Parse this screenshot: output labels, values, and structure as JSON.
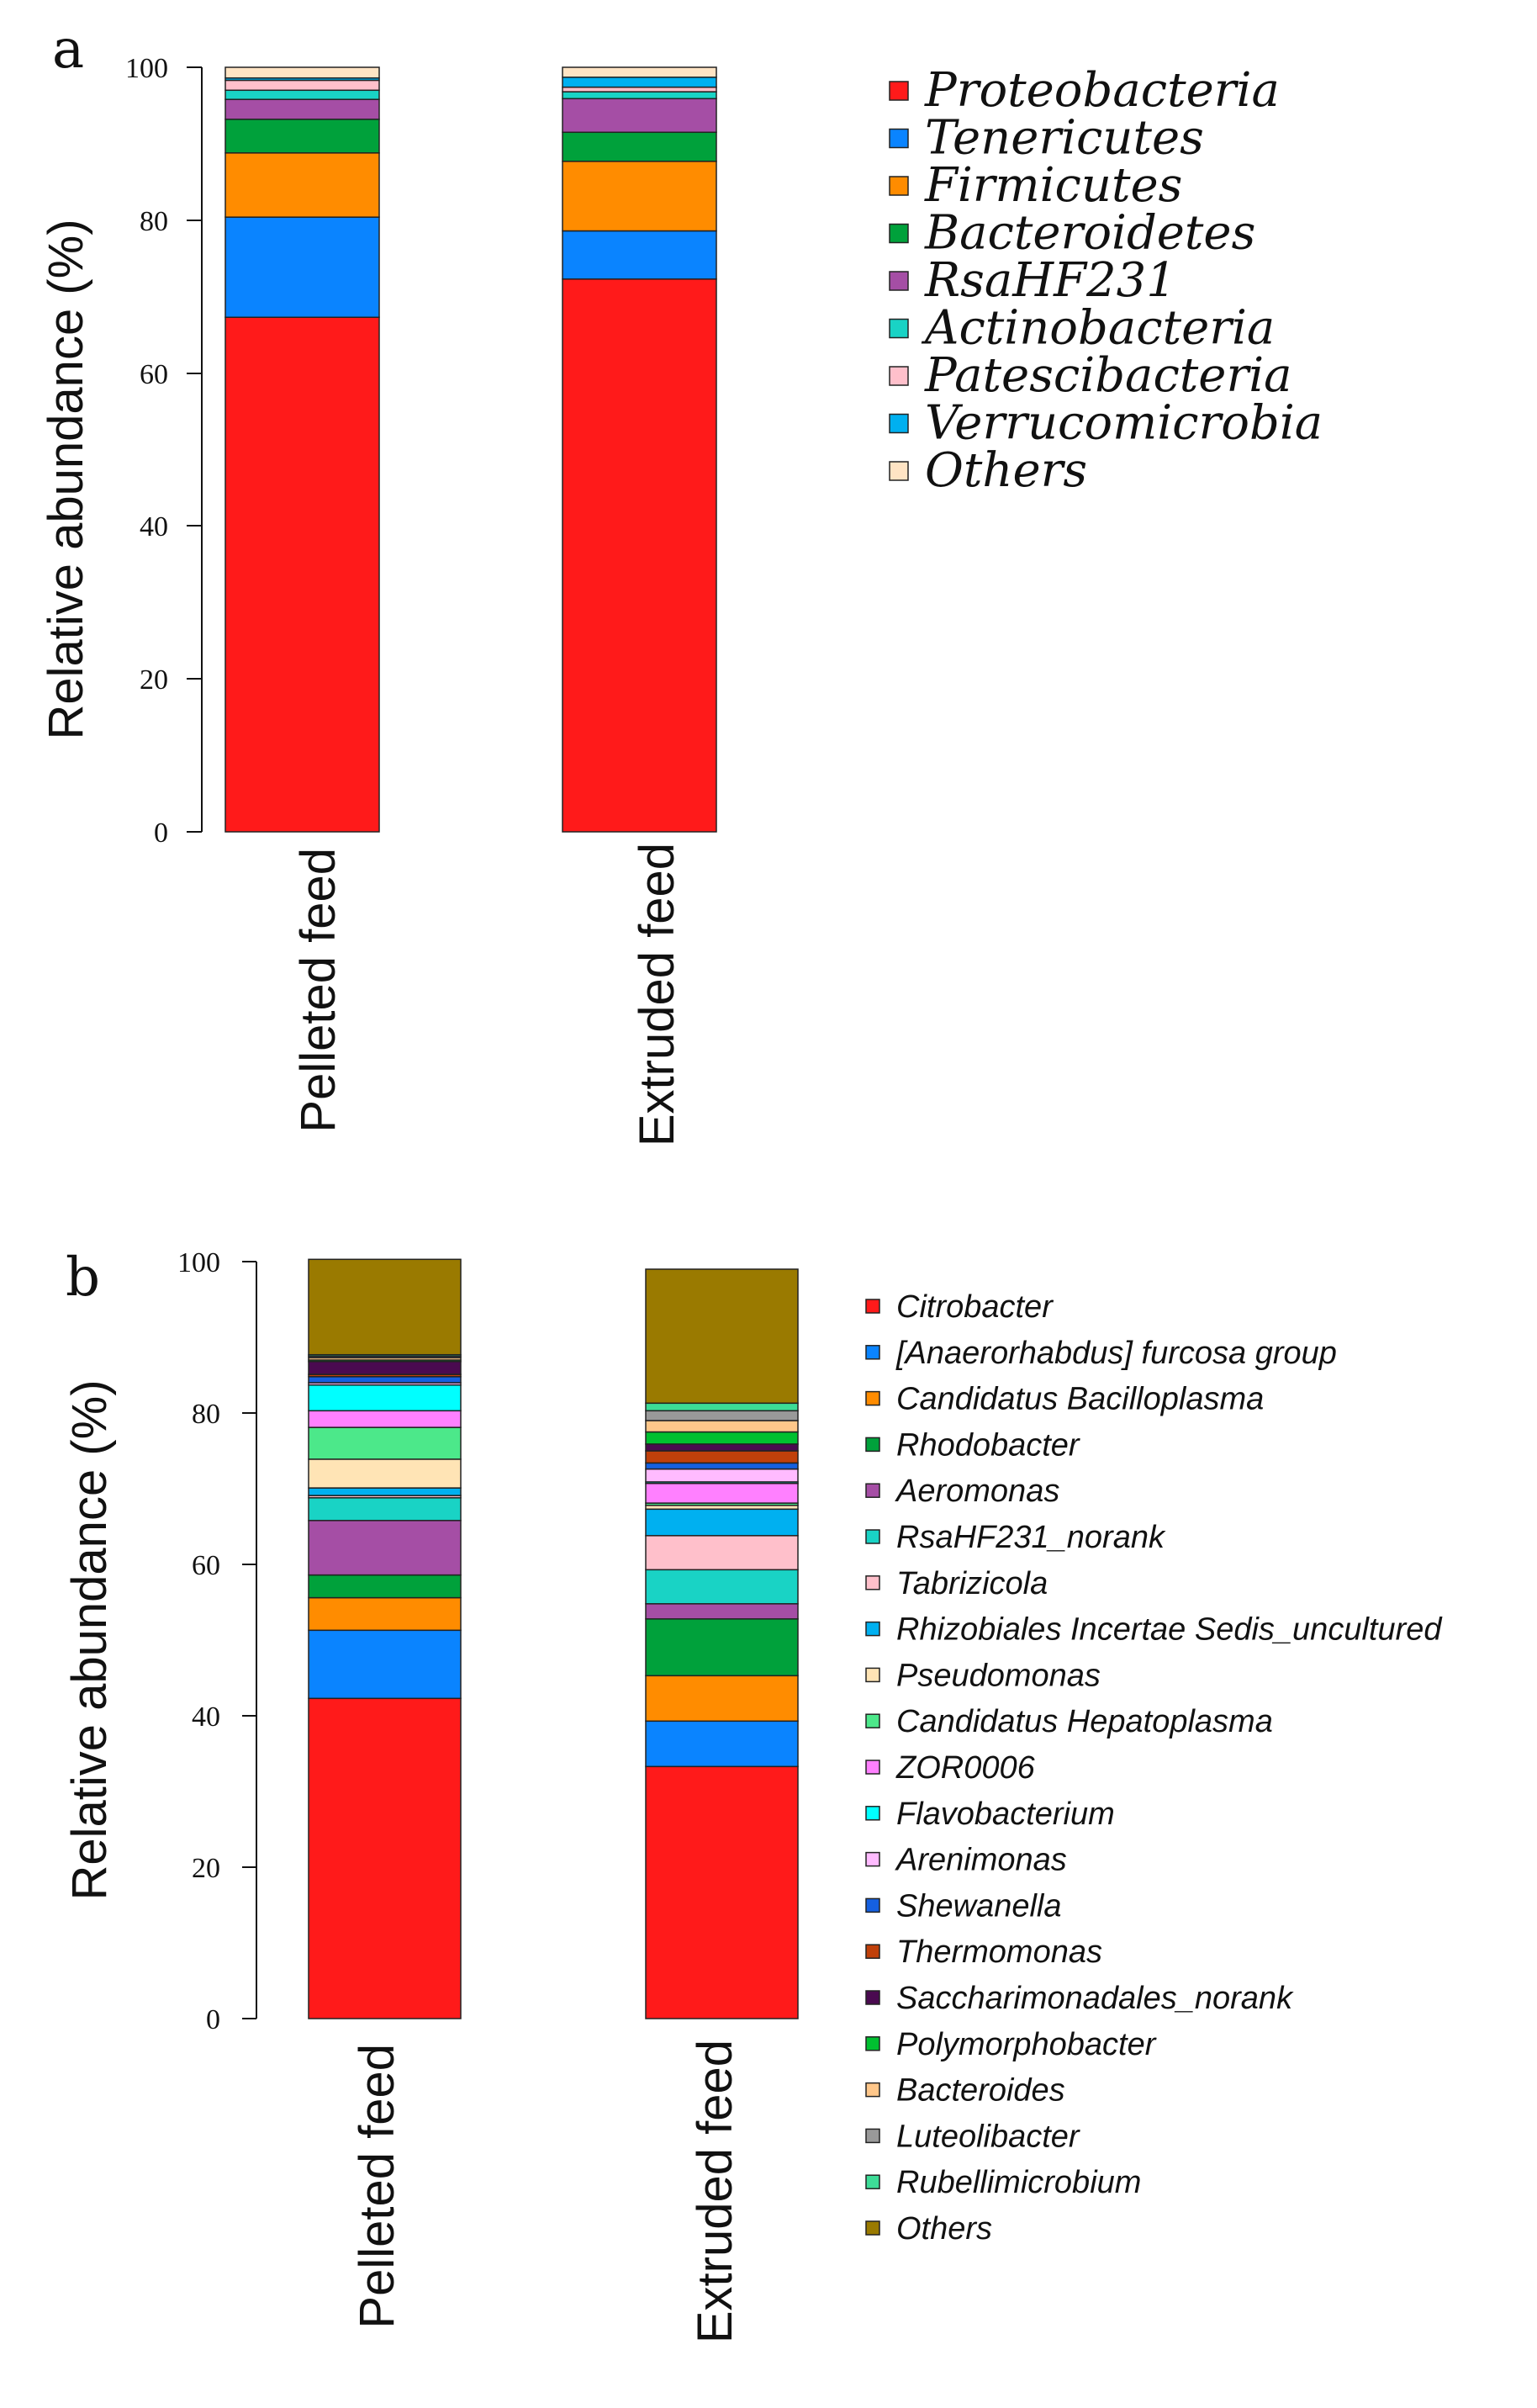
{
  "chart_data": [
    {
      "type": "bar",
      "stacked": true,
      "panel_label": "a",
      "ylabel": "Relative abundance (%)",
      "ylim": [
        0,
        100
      ],
      "yticks": [
        0,
        20,
        40,
        60,
        80,
        100
      ],
      "categories": [
        "Pelleted feed",
        "Extruded feed"
      ],
      "series": [
        {
          "name": "Proteobacteria",
          "color": "#ff1a1a",
          "values": [
            67.3,
            72.3
          ]
        },
        {
          "name": "Tenericutes",
          "color": "#0a84ff",
          "values": [
            13.1,
            6.3
          ]
        },
        {
          "name": "Firmicutes",
          "color": "#ff8c00",
          "values": [
            8.4,
            9.1
          ]
        },
        {
          "name": "Bacteroidetes",
          "color": "#00a13b",
          "values": [
            4.4,
            3.8
          ]
        },
        {
          "name": "RsaHF231",
          "color": "#a54ea5",
          "values": [
            2.6,
            4.4
          ]
        },
        {
          "name": "Actinobacteria",
          "color": "#19d3c5",
          "values": [
            1.2,
            0.9
          ]
        },
        {
          "name": "Patescibacteria",
          "color": "#ffc0cb",
          "values": [
            1.3,
            0.6
          ]
        },
        {
          "name": "Verrucomicrobia",
          "color": "#00b0f0",
          "values": [
            0.3,
            1.3
          ]
        },
        {
          "name": "Others",
          "color": "#ffe4c4",
          "values": [
            1.4,
            1.3
          ]
        }
      ],
      "legend": "right"
    },
    {
      "type": "bar",
      "stacked": true,
      "panel_label": "b",
      "ylabel": "Relative abundance (%)",
      "ylim": [
        0,
        100
      ],
      "yticks": [
        0,
        20,
        40,
        60,
        80,
        100
      ],
      "categories": [
        "Pelleted feed",
        "Extruded feed"
      ],
      "series": [
        {
          "name": "Citrobacter",
          "color": "#ff1a1a",
          "values": [
            42.3,
            33.3
          ]
        },
        {
          "name": "[Anaerorhabdus] furcosa group",
          "color": "#0a84ff",
          "values": [
            9.0,
            6.0
          ]
        },
        {
          "name": "Candidatus Bacilloplasma",
          "color": "#ff8c00",
          "values": [
            4.3,
            6.0
          ]
        },
        {
          "name": "Rhodobacter",
          "color": "#00a13b",
          "values": [
            3.0,
            7.5
          ]
        },
        {
          "name": "Aeromonas",
          "color": "#a54ea5",
          "values": [
            7.2,
            2.0
          ]
        },
        {
          "name": "RsaHF231_norank",
          "color": "#19d3c5",
          "values": [
            3.0,
            4.5
          ]
        },
        {
          "name": "Tabrizicola",
          "color": "#ffc0cb",
          "values": [
            0.3,
            4.5
          ]
        },
        {
          "name": "Rhizobiales Incertae Sedis_uncultured",
          "color": "#00b0f0",
          "values": [
            1.0,
            3.5
          ]
        },
        {
          "name": "Pseudomonas",
          "color": "#ffe4b5",
          "values": [
            3.8,
            0.5
          ]
        },
        {
          "name": "Candidatus Hepatoplasma",
          "color": "#4ce88a",
          "values": [
            4.2,
            0.3
          ]
        },
        {
          "name": "ZOR0006",
          "color": "#ff80ff",
          "values": [
            2.2,
            2.6
          ]
        },
        {
          "name": "Flavobacterium",
          "color": "#00ffff",
          "values": [
            3.4,
            0.2
          ]
        },
        {
          "name": "Arenimonas",
          "color": "#ffbbff",
          "values": [
            0.3,
            1.7
          ]
        },
        {
          "name": "Shewanella",
          "color": "#1560e0",
          "values": [
            0.8,
            0.8
          ]
        },
        {
          "name": "Thermomonas",
          "color": "#c0400a",
          "values": [
            0.3,
            1.6
          ]
        },
        {
          "name": "Saccharimonadales_norank",
          "color": "#4a0a50",
          "values": [
            1.7,
            0.9
          ]
        },
        {
          "name": "Polymorphobacter",
          "color": "#00c030",
          "values": [
            0.2,
            1.6
          ]
        },
        {
          "name": "Bacteroides",
          "color": "#ffc78a",
          "values": [
            0.3,
            1.5
          ]
        },
        {
          "name": "Luteolibacter",
          "color": "#999999",
          "values": [
            0.2,
            1.3
          ]
        },
        {
          "name": "Rubellimicrobium",
          "color": "#3ddc97",
          "values": [
            0.2,
            1.0
          ]
        },
        {
          "name": "Others",
          "color": "#9a7a00",
          "values": [
            12.6,
            17.7
          ]
        }
      ],
      "legend": "right"
    }
  ]
}
